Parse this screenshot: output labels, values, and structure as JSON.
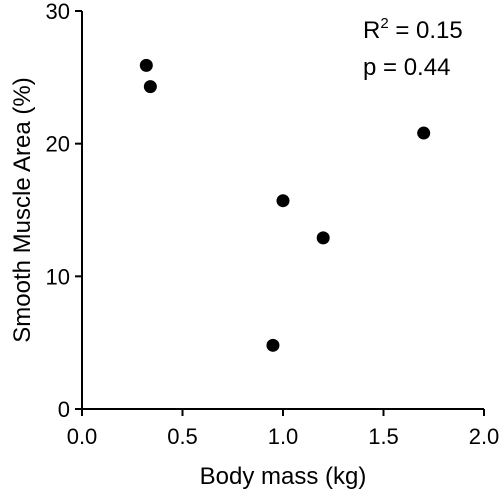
{
  "chart_data": {
    "type": "scatter",
    "title": "",
    "xlabel": "Body mass (kg)",
    "ylabel": "Smooth Muscle Area (%)",
    "xlim": [
      0.0,
      2.0
    ],
    "ylim": [
      0,
      30
    ],
    "xticks": [
      0.0,
      0.5,
      1.0,
      1.5,
      2.0
    ],
    "xtick_labels": [
      "0.0",
      "0.5",
      "1.0",
      "1.5",
      "2.0"
    ],
    "yticks": [
      0,
      10,
      20,
      30
    ],
    "ytick_labels": [
      "0",
      "10",
      "20",
      "30"
    ],
    "grid": false,
    "series": [
      {
        "points": [
          {
            "x": 0.32,
            "y": 25.9
          },
          {
            "x": 0.34,
            "y": 24.3
          },
          {
            "x": 0.95,
            "y": 4.8
          },
          {
            "x": 1.0,
            "y": 15.7
          },
          {
            "x": 1.2,
            "y": 12.9
          },
          {
            "x": 1.7,
            "y": 20.8
          }
        ]
      }
    ],
    "annotations": {
      "r2_base": "R",
      "r2_sup": "2",
      "r2_value": " = 0.15",
      "p_text": "p = 0.44"
    },
    "marker_color": "#000000"
  }
}
